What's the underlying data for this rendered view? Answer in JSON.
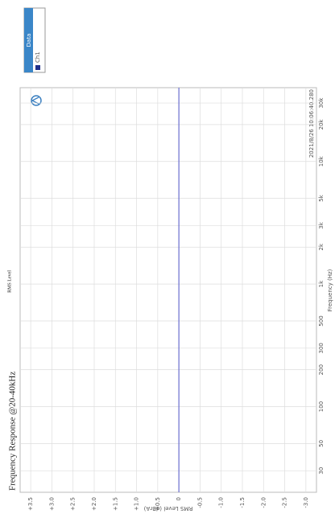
{
  "chart_data": {
    "type": "line",
    "title": "Frequency Response @20-40kHz",
    "subtitle": "RMS Level",
    "timestamp": "2021/8/26 10:06:40.280",
    "x_label": "Frequency (Hz)",
    "y_label": "RMS Level (dBrA)",
    "legend_title": "Data",
    "log_x": true,
    "grid": true,
    "x": [
      20,
      100,
      1000,
      10000,
      40000
    ],
    "series": [
      {
        "name": "Ch1",
        "color": "#6b6fcf",
        "values": [
          0,
          0,
          0,
          0,
          0
        ]
      }
    ],
    "xlim": [
      20,
      40000
    ],
    "xticks": [
      30,
      50,
      100,
      200,
      300,
      500,
      {
        "value": 1000,
        "label": "1k"
      },
      {
        "value": 2000,
        "label": "2k"
      },
      {
        "value": 3000,
        "label": "3k"
      },
      {
        "value": 5000,
        "label": "5k"
      },
      {
        "value": 10000,
        "label": "10k"
      },
      {
        "value": 20000,
        "label": "20k"
      },
      {
        "value": 30000,
        "label": "30k"
      }
    ],
    "ylim": [
      -3.25,
      3.75
    ],
    "yticks": [
      {
        "value": 3.5,
        "label": "+3.5"
      },
      {
        "value": 3,
        "label": "+3.0"
      },
      {
        "value": 2.5,
        "label": "+2.5"
      },
      {
        "value": 2,
        "label": "+2.0"
      },
      {
        "value": 1.5,
        "label": "+1.5"
      },
      {
        "value": 1,
        "label": "+1.0"
      },
      {
        "value": 0.5,
        "label": "+0.5"
      },
      0,
      -0.5,
      {
        "value": -1,
        "label": "-1.0"
      },
      -1.5,
      {
        "value": -2,
        "label": "-2.0"
      },
      -2.5,
      {
        "value": -3,
        "label": "-3.0"
      }
    ]
  }
}
